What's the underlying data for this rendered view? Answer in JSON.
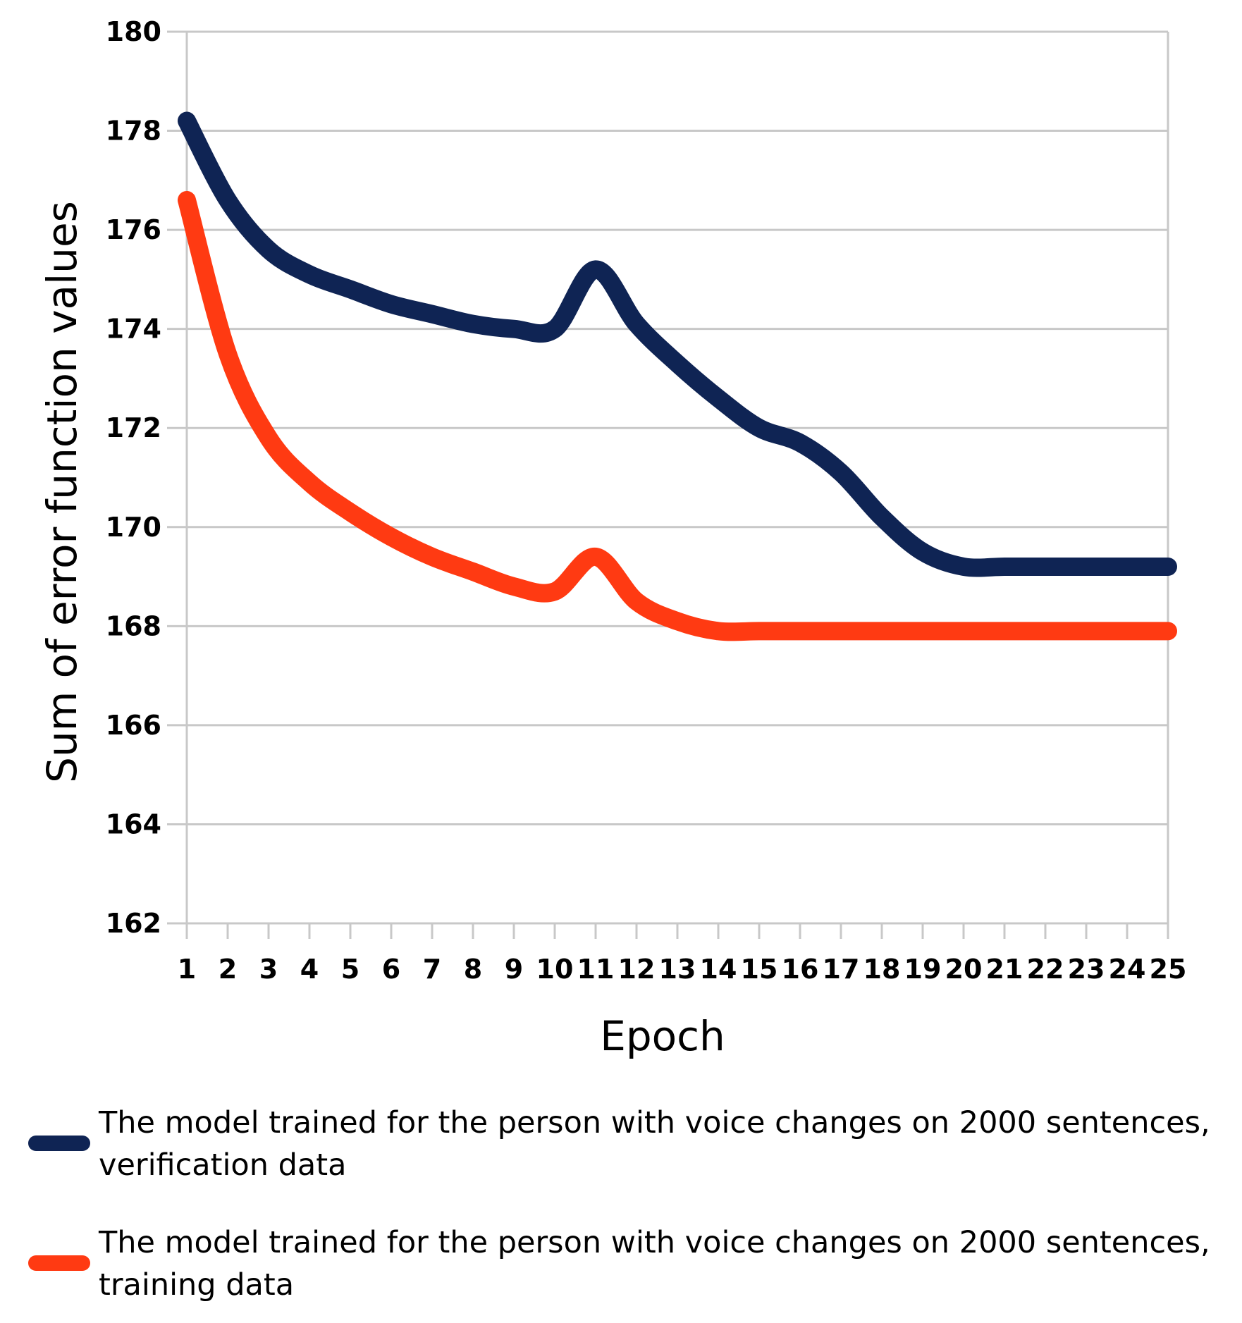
{
  "colors": {
    "verification": "#0f2454",
    "training": "#ff3a12",
    "grid": "#c8c8c8"
  },
  "chart_data": {
    "type": "line",
    "title": "",
    "xlabel": "Epoch",
    "ylabel": "Sum of error function values",
    "x": [
      1,
      2,
      3,
      4,
      5,
      6,
      7,
      8,
      9,
      10,
      11,
      12,
      13,
      14,
      15,
      16,
      17,
      18,
      19,
      20,
      21,
      22,
      23,
      24,
      25
    ],
    "x_tick_labels": [
      "1",
      "2",
      "3",
      "4",
      "5",
      "6",
      "7",
      "8",
      "9",
      "10",
      "11",
      "12",
      "13",
      "14",
      "15",
      "16",
      "17",
      "18",
      "19",
      "20",
      "21",
      "22",
      "23",
      "24",
      "25"
    ],
    "y_tick_labels": [
      "162",
      "164",
      "166",
      "168",
      "170",
      "172",
      "174",
      "176",
      "178",
      "180"
    ],
    "ylim": [
      162,
      180
    ],
    "grid": true,
    "legend_position": "bottom",
    "series": [
      {
        "name": "The model trained for the person with voice changes on 2000 sentences, verification data",
        "label_line1": "The model trained for the person with voice changes on 2000 sentences,",
        "label_line2": "verification data",
        "color": "#0f2454",
        "values": [
          178.2,
          176.6,
          175.6,
          175.1,
          174.8,
          174.5,
          174.3,
          174.1,
          174.0,
          174.0,
          175.2,
          174.1,
          173.3,
          172.6,
          172.0,
          171.7,
          171.1,
          170.2,
          169.5,
          169.2,
          169.2,
          169.2,
          169.2,
          169.2,
          169.2
        ]
      },
      {
        "name": "The model trained for the person with voice changes on 2000 sentences, training data",
        "label_line1": "The model trained for the person with voice changes on 2000 sentences,",
        "label_line2": "training data",
        "color": "#ff3a12",
        "values": [
          176.6,
          173.5,
          171.8,
          170.9,
          170.3,
          169.8,
          169.4,
          169.1,
          168.8,
          168.7,
          169.4,
          168.5,
          168.1,
          167.9,
          167.9,
          167.9,
          167.9,
          167.9,
          167.9,
          167.9,
          167.9,
          167.9,
          167.9,
          167.9,
          167.9
        ]
      }
    ]
  }
}
